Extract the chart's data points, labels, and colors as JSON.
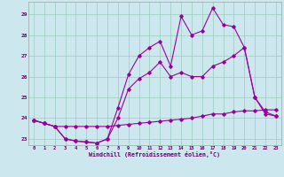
{
  "xlabel": "Windchill (Refroidissement éolien,°C)",
  "background_color": "#cce8ee",
  "grid_color": "#99ccbb",
  "line_color": "#990099",
  "xlim_min": -0.5,
  "xlim_max": 23.5,
  "ylim_min": 22.7,
  "ylim_max": 29.6,
  "yticks": [
    23,
    24,
    25,
    26,
    27,
    28,
    29
  ],
  "xticks": [
    0,
    1,
    2,
    3,
    4,
    5,
    6,
    7,
    8,
    9,
    10,
    11,
    12,
    13,
    14,
    15,
    16,
    17,
    18,
    19,
    20,
    21,
    22,
    23
  ],
  "line1_x": [
    0,
    1,
    2,
    3,
    4,
    5,
    6,
    7,
    8,
    9,
    10,
    11,
    12,
    13,
    14,
    15,
    16,
    17,
    18,
    19,
    20,
    21,
    22,
    23
  ],
  "line1_y": [
    23.9,
    23.75,
    23.6,
    23.6,
    23.6,
    23.6,
    23.6,
    23.6,
    23.65,
    23.7,
    23.75,
    23.8,
    23.85,
    23.9,
    23.95,
    24.0,
    24.1,
    24.2,
    24.2,
    24.3,
    24.35,
    24.35,
    24.4,
    24.4
  ],
  "line2_x": [
    0,
    1,
    2,
    3,
    4,
    5,
    6,
    7,
    8,
    9,
    10,
    11,
    12,
    13,
    14,
    15,
    16,
    17,
    18,
    19,
    20,
    21,
    22,
    23
  ],
  "line2_y": [
    23.9,
    23.75,
    23.6,
    23.0,
    22.9,
    22.85,
    22.8,
    23.0,
    24.0,
    25.4,
    25.9,
    26.2,
    26.7,
    26.0,
    26.2,
    26.0,
    26.0,
    26.5,
    26.7,
    27.0,
    27.4,
    25.0,
    24.2,
    24.1
  ],
  "line3_x": [
    0,
    1,
    2,
    3,
    4,
    5,
    6,
    7,
    8,
    9,
    10,
    11,
    12,
    13,
    14,
    15,
    16,
    17,
    18,
    19,
    20,
    21,
    22,
    23
  ],
  "line3_y": [
    23.9,
    23.75,
    23.6,
    23.0,
    22.9,
    22.85,
    22.8,
    23.0,
    24.5,
    26.1,
    27.0,
    27.4,
    27.7,
    26.5,
    28.9,
    28.0,
    28.2,
    29.3,
    28.5,
    28.4,
    27.4,
    25.0,
    24.3,
    24.1
  ]
}
